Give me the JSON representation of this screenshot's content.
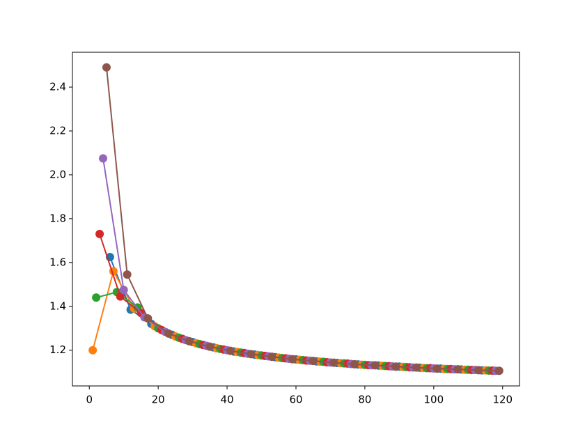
{
  "chart_data": {
    "type": "line",
    "xlim": [
      -4.9,
      124.9
    ],
    "ylim": [
      1.037,
      2.559
    ],
    "xticks": [
      0,
      20,
      40,
      60,
      80,
      100,
      120
    ],
    "yticks": [
      1.2,
      1.4,
      1.6,
      1.8,
      {
        "value": 2,
        "label": "2.0"
      },
      2.2,
      2.4
    ],
    "series": [
      {
        "color": "#1f77b4",
        "x": [
          6,
          12,
          18,
          24,
          30,
          36,
          42,
          48,
          54,
          60,
          66,
          72,
          78,
          84,
          90,
          96,
          102,
          108,
          114
        ],
        "values": [
          1.625,
          1.385,
          1.32,
          1.27,
          1.237,
          1.213,
          1.194,
          1.18,
          1.168,
          1.158,
          1.149,
          1.142,
          1.135,
          1.13,
          1.125,
          1.12,
          1.116,
          1.112,
          1.108
        ]
      },
      {
        "color": "#ff7f0e",
        "x": [
          1,
          7,
          13,
          19,
          25,
          31,
          37,
          43,
          49,
          55,
          61,
          67,
          73,
          79,
          85,
          91,
          97,
          103,
          109,
          115
        ],
        "values": [
          1.2,
          1.56,
          1.39,
          1.309,
          1.263,
          1.232,
          1.209,
          1.192,
          1.178,
          1.166,
          1.156,
          1.148,
          1.141,
          1.134,
          1.129,
          1.124,
          1.119,
          1.115,
          1.111,
          1.108
        ]
      },
      {
        "color": "#2ca02c",
        "x": [
          2,
          8,
          14,
          20,
          26,
          32,
          38,
          44,
          50,
          56,
          62,
          68,
          74,
          80,
          86,
          92,
          98,
          104,
          110,
          116
        ],
        "values": [
          1.44,
          1.465,
          1.395,
          1.3,
          1.257,
          1.228,
          1.206,
          1.189,
          1.176,
          1.164,
          1.155,
          1.147,
          1.14,
          1.133,
          1.128,
          1.123,
          1.118,
          1.114,
          1.111,
          1.107
        ]
      },
      {
        "color": "#d62728",
        "x": [
          3,
          9,
          15,
          21,
          27,
          33,
          39,
          45,
          51,
          57,
          63,
          69,
          75,
          81,
          87,
          93,
          99,
          105,
          111,
          117
        ],
        "values": [
          1.73,
          1.445,
          1.37,
          1.292,
          1.252,
          1.224,
          1.203,
          1.187,
          1.174,
          1.163,
          1.153,
          1.145,
          1.139,
          1.132,
          1.127,
          1.122,
          1.118,
          1.114,
          1.11,
          1.107
        ]
      },
      {
        "color": "#9467bd",
        "x": [
          4,
          10,
          16,
          22,
          28,
          34,
          40,
          46,
          52,
          58,
          64,
          70,
          76,
          82,
          88,
          94,
          100,
          106,
          112,
          118
        ],
        "values": [
          2.075,
          1.475,
          1.35,
          1.284,
          1.246,
          1.22,
          1.2,
          1.184,
          1.172,
          1.161,
          1.152,
          1.144,
          1.137,
          1.131,
          1.126,
          1.121,
          1.117,
          1.113,
          1.11,
          1.106
        ]
      },
      {
        "color": "#8c564b",
        "x": [
          5,
          11,
          17,
          23,
          29,
          35,
          41,
          47,
          53,
          59,
          65,
          71,
          77,
          83,
          89,
          95,
          101,
          107,
          113,
          119
        ],
        "values": [
          2.49,
          1.545,
          1.345,
          1.276,
          1.241,
          1.216,
          1.197,
          1.182,
          1.17,
          1.159,
          1.151,
          1.143,
          1.136,
          1.131,
          1.125,
          1.121,
          1.116,
          1.113,
          1.109,
          1.106
        ]
      }
    ]
  }
}
